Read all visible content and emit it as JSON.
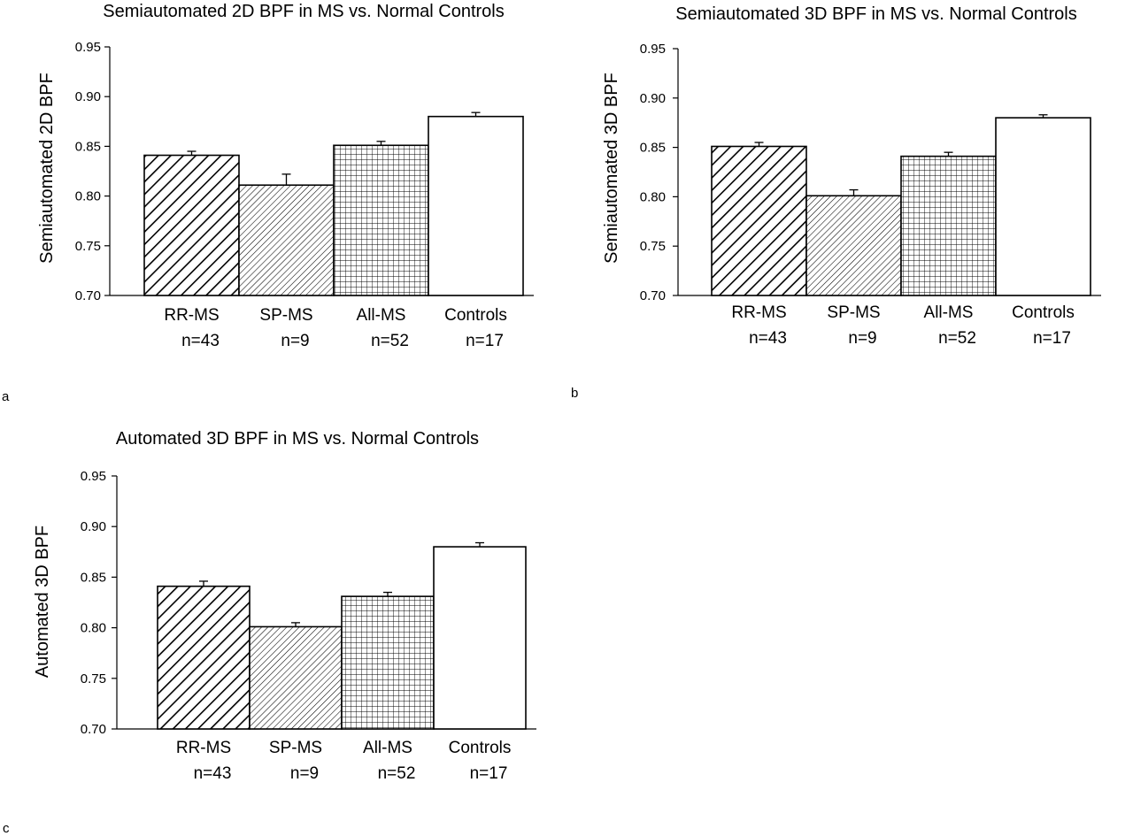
{
  "chart_data": [
    {
      "panel": "a",
      "type": "bar",
      "title": "Semiautomated 2D BPF in MS vs. Normal Controls",
      "ylabel": "Semiautomated 2D BPF",
      "xlabel": "",
      "ylim": [
        0.7,
        0.95
      ],
      "yticks": [
        "0.70",
        "0.75",
        "0.80",
        "0.85",
        "0.90",
        "0.95"
      ],
      "categories": [
        "RR-MS",
        "SP-MS",
        "All-MS",
        "Controls"
      ],
      "sublabels": [
        "n=43",
        "n=9",
        "n=52",
        "n=17"
      ],
      "values": [
        0.841,
        0.811,
        0.851,
        0.88
      ],
      "errors": [
        0.004,
        0.011,
        0.004,
        0.004
      ],
      "patterns": [
        "wide-diagonal",
        "fine-diagonal",
        "grid",
        "none"
      ],
      "grid": false
    },
    {
      "panel": "b",
      "type": "bar",
      "title": "Semiautomated 3D BPF in MS vs. Normal Controls",
      "ylabel": "Semiautomated 3D BPF",
      "xlabel": "",
      "ylim": [
        0.7,
        0.95
      ],
      "yticks": [
        "0.70",
        "0.75",
        "0.80",
        "0.85",
        "0.90",
        "0.95"
      ],
      "categories": [
        "RR-MS",
        "SP-MS",
        "All-MS",
        "Controls"
      ],
      "sublabels": [
        "n=43",
        "n=9",
        "n=52",
        "n=17"
      ],
      "values": [
        0.851,
        0.801,
        0.841,
        0.88
      ],
      "errors": [
        0.004,
        0.006,
        0.004,
        0.003
      ],
      "patterns": [
        "wide-diagonal",
        "fine-diagonal",
        "grid",
        "none"
      ],
      "grid": false
    },
    {
      "panel": "c",
      "type": "bar",
      "title": "Automated 3D BPF in MS vs. Normal Controls",
      "ylabel": "Automated 3D BPF",
      "xlabel": "",
      "ylim": [
        0.7,
        0.95
      ],
      "yticks": [
        "0.70",
        "0.75",
        "0.80",
        "0.85",
        "0.90",
        "0.95"
      ],
      "categories": [
        "RR-MS",
        "SP-MS",
        "All-MS",
        "Controls"
      ],
      "sublabels": [
        "n=43",
        "n=9",
        "n=52",
        "n=17"
      ],
      "values": [
        0.841,
        0.801,
        0.831,
        0.88
      ],
      "errors": [
        0.005,
        0.004,
        0.004,
        0.004
      ],
      "patterns": [
        "wide-diagonal",
        "fine-diagonal",
        "grid",
        "none"
      ],
      "grid": false
    }
  ],
  "colors": {
    "stroke": "#000000",
    "background": "#ffffff"
  },
  "panel_labels": {
    "a": "a",
    "b": "b",
    "c": "c"
  }
}
